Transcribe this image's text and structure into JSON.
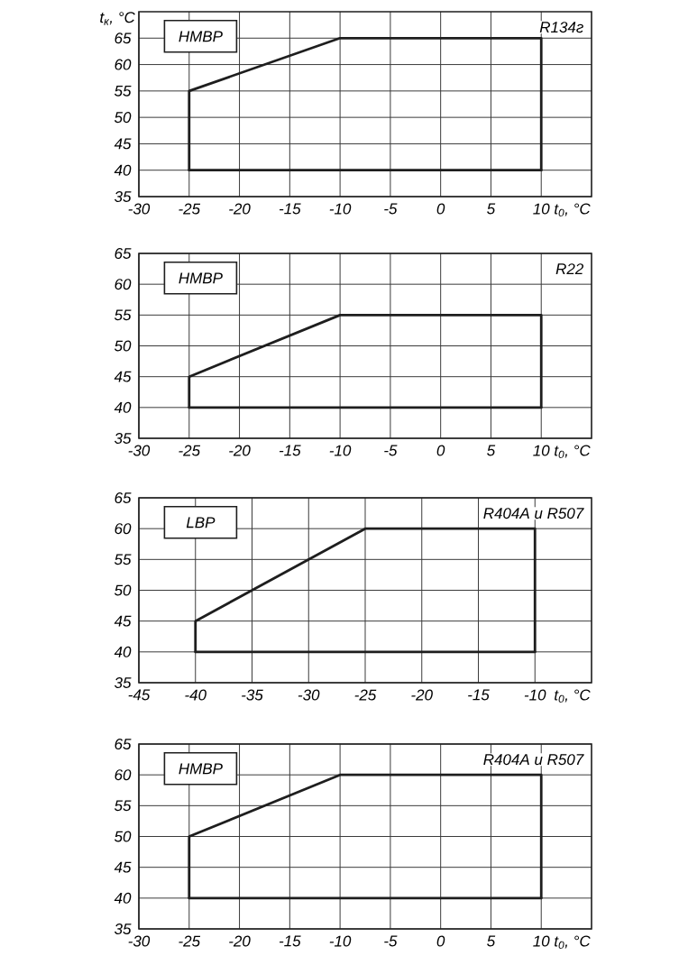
{
  "chart_data": [
    {
      "type": "line",
      "ylabel": "t$_{к}$, °C",
      "xlabel": "t$_{0}$, °C",
      "series": [
        {
          "color": "#1e1e1e",
          "x": [
            -25,
            -25,
            -10,
            10,
            10
          ],
          "values": [
            40,
            55,
            65,
            65,
            40
          ]
        },
        {
          "color": "#1e1e1e",
          "x": [
            -25,
            10
          ],
          "values": [
            40,
            40
          ]
        }
      ],
      "xlim": [
        -30,
        15
      ],
      "xticks": [
        -30,
        -25,
        -20,
        -15,
        -10,
        -5,
        0,
        5,
        10
      ],
      "ylim": [
        35,
        70
      ],
      "yticks": [
        35,
        40,
        45,
        50,
        55,
        60,
        65
      ],
      "grid": true,
      "annotations": [
        "HMBP",
        "R134г"
      ]
    },
    {
      "type": "line",
      "xlabel": "t$_{0}$, °C",
      "series": [
        {
          "color": "#1e1e1e",
          "x": [
            -25,
            -25,
            -10,
            10,
            10
          ],
          "values": [
            40,
            45,
            55,
            55,
            40
          ]
        },
        {
          "color": "#1e1e1e",
          "x": [
            -25,
            10
          ],
          "values": [
            40,
            40
          ]
        }
      ],
      "xlim": [
        -30,
        15
      ],
      "xticks": [
        -30,
        -25,
        -20,
        -15,
        -10,
        -5,
        0,
        5,
        10
      ],
      "ylim": [
        35,
        65
      ],
      "yticks": [
        35,
        40,
        45,
        50,
        55,
        60,
        65
      ],
      "grid": true,
      "annotations": [
        "HMBP",
        "R22"
      ]
    },
    {
      "type": "line",
      "xlabel": "t$_{0}$, °C",
      "series": [
        {
          "color": "#1e1e1e",
          "x": [
            -40,
            -40,
            -25,
            -10,
            -10
          ],
          "values": [
            40,
            45,
            60,
            60,
            40
          ]
        },
        {
          "color": "#1e1e1e",
          "x": [
            -40,
            -10
          ],
          "values": [
            40,
            40
          ]
        }
      ],
      "xlim": [
        -45,
        -5
      ],
      "xticks": [
        -45,
        -40,
        -35,
        -30,
        -25,
        -20,
        -15,
        -10
      ],
      "ylim": [
        35,
        65
      ],
      "yticks": [
        35,
        40,
        45,
        50,
        55,
        60,
        65
      ],
      "grid": true,
      "annotations": [
        "LBP",
        "R404A и R507"
      ]
    },
    {
      "type": "line",
      "xlabel": "t$_{0}$, °C",
      "series": [
        {
          "color": "#1e1e1e",
          "x": [
            -25,
            -25,
            -10,
            10,
            10
          ],
          "values": [
            40,
            50,
            60,
            60,
            40
          ]
        },
        {
          "color": "#1e1e1e",
          "x": [
            -25,
            10
          ],
          "values": [
            40,
            40
          ]
        }
      ],
      "xlim": [
        -30,
        15
      ],
      "xticks": [
        -30,
        -25,
        -20,
        -15,
        -10,
        -5,
        0,
        5,
        10
      ],
      "ylim": [
        35,
        65
      ],
      "yticks": [
        35,
        40,
        45,
        50,
        55,
        60,
        65
      ],
      "grid": true,
      "annotations": [
        "HMBP",
        "R404A и R507"
      ]
    }
  ]
}
